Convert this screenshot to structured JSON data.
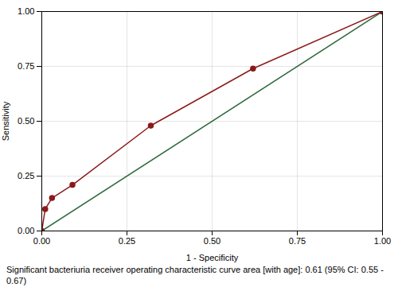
{
  "chart_data": {
    "type": "line",
    "xlabel": "1 - Specificity",
    "ylabel": "Sensitivity",
    "caption": "Significant bacteriuria receiver operating characteristic curve area [with age]: 0.61 (95% CI: 0.55 - 0.67)",
    "series": [
      {
        "x": [
          0.0,
          1.0
        ],
        "values": [
          0.0,
          1.0
        ],
        "color": "#2E6B3E"
      },
      {
        "x": [
          0.0,
          0.01,
          0.03,
          0.09,
          0.32,
          0.62,
          1.0
        ],
        "values": [
          0.0,
          0.1,
          0.15,
          0.21,
          0.48,
          0.74,
          1.0
        ],
        "color": "#8B1A1A",
        "marker": "circle"
      }
    ],
    "xlim": [
      0.0,
      1.0
    ],
    "ylim": [
      0.0,
      1.0
    ],
    "xticks": [
      {
        "value": 0.0,
        "label": "0.00"
      },
      {
        "value": 0.25,
        "label": "0.25"
      },
      {
        "value": 0.5,
        "label": "0.50"
      },
      {
        "value": 0.75,
        "label": "0.75"
      },
      {
        "value": 1.0,
        "label": "1.00"
      }
    ],
    "yticks": [
      {
        "value": 0.0,
        "label": "0.00"
      },
      {
        "value": 0.25,
        "label": "0.25"
      },
      {
        "value": 0.5,
        "label": "0.50"
      },
      {
        "value": 0.75,
        "label": "0.75"
      },
      {
        "value": 1.0,
        "label": "1.00"
      }
    ],
    "grid": true
  }
}
